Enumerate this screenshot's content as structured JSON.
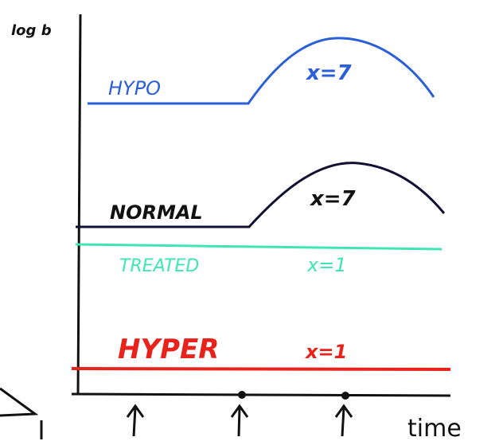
{
  "axes": {
    "y_label": "log b",
    "x_label": "time"
  },
  "curves": [
    {
      "label": "HYPO",
      "annotation": "x=7"
    },
    {
      "label": "NORMAL",
      "annotation": "x=7"
    },
    {
      "label": "TREATED",
      "annotation": "x=1"
    },
    {
      "label": "HYPER",
      "annotation": "x=1"
    }
  ]
}
